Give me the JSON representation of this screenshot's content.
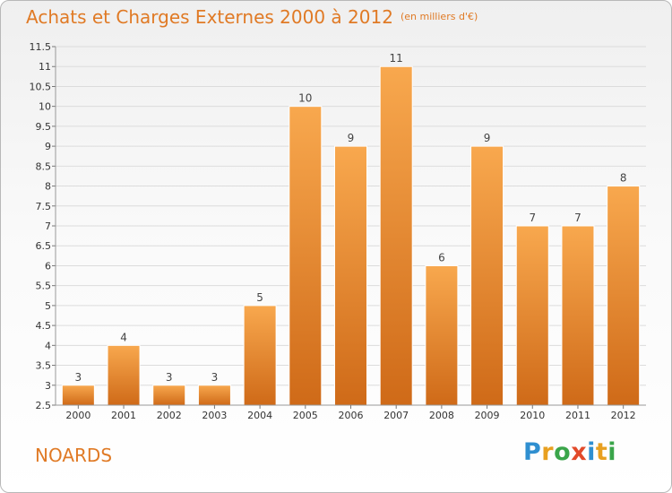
{
  "header": {
    "title": "Achats et Charges Externes 2000 à 2012",
    "unit": "(en milliers d'€)"
  },
  "footer": {
    "commune": "NOARDS",
    "brand_letters": [
      "P",
      "r",
      "o",
      "x",
      "i",
      "t",
      "i"
    ]
  },
  "colors": {
    "bar_light": "#f8a84e",
    "bar_dark": "#cf6a18",
    "title": "#e07a25",
    "grid": "#dcdcdc"
  },
  "chart_data": {
    "type": "bar",
    "categories": [
      "2000",
      "2001",
      "2002",
      "2003",
      "2004",
      "2005",
      "2006",
      "2007",
      "2008",
      "2009",
      "2010",
      "2011",
      "2012"
    ],
    "values": [
      3,
      4,
      3,
      3,
      5,
      10,
      9,
      11,
      6,
      9,
      7,
      7,
      8
    ],
    "ylim": [
      2.5,
      11.5
    ],
    "yticks": [
      "2.5",
      "3",
      "3.5",
      "4",
      "4.5",
      "5",
      "5.5",
      "6",
      "6.5",
      "7",
      "7.5",
      "8",
      "8.5",
      "9",
      "9.5",
      "10",
      "10.5",
      "11",
      "11.5"
    ],
    "grid": true,
    "legend": "none"
  }
}
